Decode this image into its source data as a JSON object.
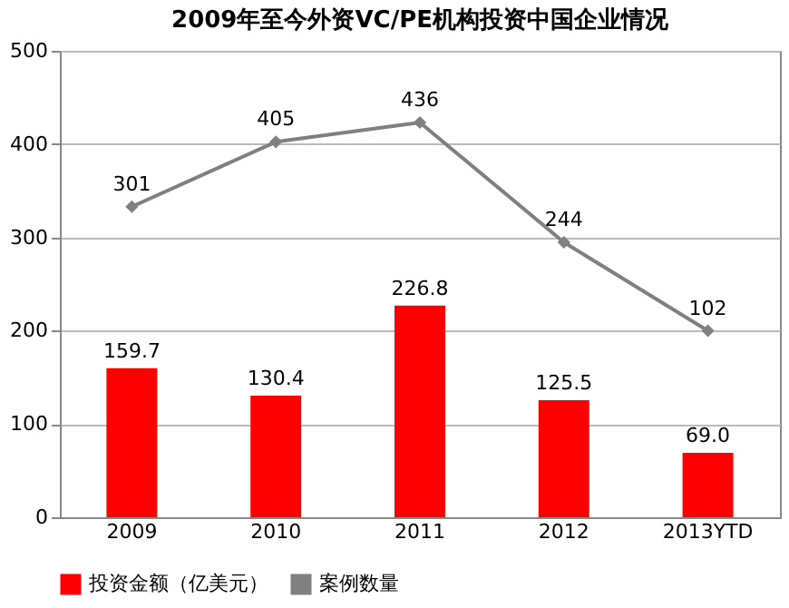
{
  "chart_data": {
    "type": "bar",
    "title": "2009年至今外资VC/PE机构投资中国企业情况",
    "categories": [
      "2009",
      "2010",
      "2011",
      "2012",
      "2013YTD"
    ],
    "series": [
      {
        "name": "投资金额（亿美元）",
        "color": "#ff0000",
        "values": [
          159.7,
          130.4,
          226.8,
          125.5,
          69.0
        ],
        "value_labels": [
          "159.7",
          "130.4",
          "226.8",
          "125.5",
          "69.0"
        ]
      },
      {
        "name": "案例数量",
        "type": "line",
        "axis": "y2",
        "color": "#808080",
        "marker": "diamond",
        "values": [
          301,
          405,
          436,
          244,
          102
        ],
        "value_labels": [
          "301",
          "405",
          "436",
          "244",
          "102"
        ]
      }
    ],
    "ylim": [
      0,
      500
    ],
    "yticks": [
      0,
      100,
      200,
      300,
      400,
      500
    ],
    "y2lim": [
      -197,
      551
    ],
    "grid": "y",
    "legend": "bottom"
  }
}
